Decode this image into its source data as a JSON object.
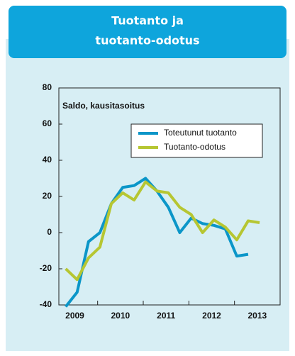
{
  "chart_data": {
    "type": "line",
    "title": [
      "Tuotanto ja",
      "tuotanto-odotus"
    ],
    "ylabel": "Saldo, kausitasoitus",
    "xlim": [
      2009.15,
      2014
    ],
    "xticks": [
      2010,
      2011,
      2012,
      2013,
      2014
    ],
    "xlabels": [
      2009,
      2010,
      2011,
      2012,
      2013
    ],
    "ylim": [
      -40,
      80
    ],
    "yticks": [
      -40,
      -20,
      0,
      20,
      40,
      60,
      80
    ],
    "grid": false,
    "legend": "upper right",
    "series": [
      {
        "name": "Toteutunut tuotanto",
        "color": "#0b96c8",
        "x": [
          2009.3,
          2009.55,
          2009.8,
          2010.05,
          2010.3,
          2010.55,
          2010.8,
          2011.05,
          2011.3,
          2011.55,
          2011.8,
          2012.05,
          2012.3,
          2012.55,
          2012.8,
          2013.05,
          2013.3
        ],
        "values": [
          -41,
          -33,
          -5,
          0,
          16,
          25,
          26,
          30,
          23,
          14,
          0,
          8,
          5,
          4,
          2,
          -13,
          -12
        ]
      },
      {
        "name": "Tuotanto-odotus",
        "color": "#b6c632",
        "x": [
          2009.3,
          2009.55,
          2009.8,
          2010.05,
          2010.3,
          2010.55,
          2010.8,
          2011.05,
          2011.3,
          2011.55,
          2011.8,
          2012.05,
          2012.3,
          2012.55,
          2012.8,
          2013.05,
          2013.3,
          2013.55
        ],
        "values": [
          -20,
          -26,
          -14,
          -8,
          16,
          22,
          18,
          28,
          23,
          22,
          14,
          10,
          0,
          7,
          3,
          -4,
          6.5,
          5.5
        ]
      }
    ]
  }
}
